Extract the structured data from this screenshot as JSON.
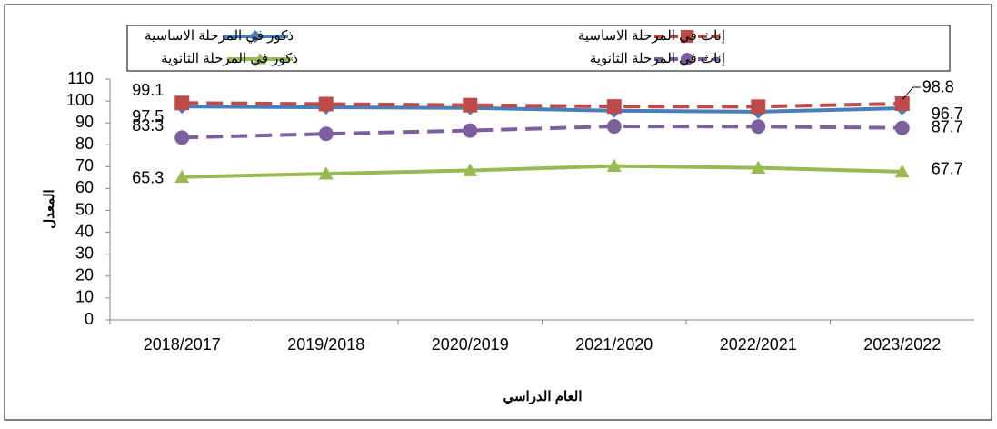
{
  "chart_data": {
    "type": "line",
    "y_label": "المعدل",
    "x_label": "العام الدراسي",
    "categories": [
      "2018/2017",
      "2019/2018",
      "2020/2019",
      "2021/2020",
      "2022/2021",
      "2023/2022"
    ],
    "series": [
      {
        "name": "ذكور في المرحلة الاساسية",
        "color": "#4a7ebb",
        "dash": false,
        "marker": "diamond",
        "values": [
          97.5,
          97.1,
          96.8,
          95.6,
          95.1,
          96.7
        ]
      },
      {
        "name": "إناث في المرحلة الاساسية",
        "color": "#be4b48",
        "dash": true,
        "marker": "square",
        "values": [
          99.1,
          98.6,
          98.1,
          97.5,
          97.4,
          98.8
        ]
      },
      {
        "name": "ذكور في المرحلة الثانوية",
        "color": "#98b954",
        "dash": false,
        "marker": "triangle",
        "values": [
          65.3,
          66.8,
          68.3,
          70.3,
          69.5,
          67.7
        ]
      },
      {
        "name": "إناث في المرحلة الثانوية",
        "color": "#7d5fa0",
        "dash": true,
        "marker": "circle",
        "values": [
          83.3,
          85.0,
          86.5,
          88.4,
          88.3,
          87.7
        ]
      }
    ],
    "labeled_points": [
      0,
      5
    ],
    "ylim": [
      0,
      110
    ],
    "yticks": [
      0,
      10,
      20,
      30,
      40,
      50,
      60,
      70,
      80,
      90,
      100,
      110
    ]
  }
}
